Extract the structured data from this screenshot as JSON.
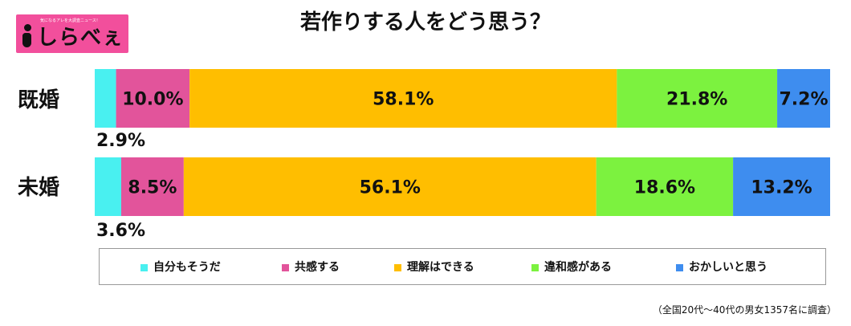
{
  "logo": {
    "tagline": "気になるアレを大調査ニュース！",
    "wordmark": "しらべぇ",
    "icon": "i-letter-mark"
  },
  "title": "若作りする人をどう思う？",
  "footnote": "（全国20代～40代の男女1357名に調査）",
  "chart_data": {
    "type": "bar",
    "stacked": true,
    "orientation": "horizontal",
    "unit": "%",
    "categories": [
      "既婚",
      "未婚"
    ],
    "series": [
      {
        "name": "自分もそうだ",
        "color": "#49f0f0",
        "values": [
          2.9,
          3.6
        ],
        "labels": [
          "2.9%",
          "3.6%"
        ]
      },
      {
        "name": "共感する",
        "color": "#e2549b",
        "values": [
          10.0,
          8.5
        ],
        "labels": [
          "10.0%",
          "8.5%"
        ]
      },
      {
        "name": "理解はできる",
        "color": "#ffbe00",
        "values": [
          58.1,
          56.1
        ],
        "labels": [
          "58.1%",
          "56.1%"
        ]
      },
      {
        "name": "違和感がある",
        "color": "#7cf23f",
        "values": [
          21.8,
          18.6
        ],
        "labels": [
          "21.8%",
          "18.6%"
        ]
      },
      {
        "name": "おかしいと思う",
        "color": "#3e8def",
        "values": [
          7.2,
          13.2
        ],
        "labels": [
          "7.2%",
          "13.2%"
        ]
      }
    ],
    "xlim": [
      0,
      100
    ],
    "legend": "bottom"
  }
}
